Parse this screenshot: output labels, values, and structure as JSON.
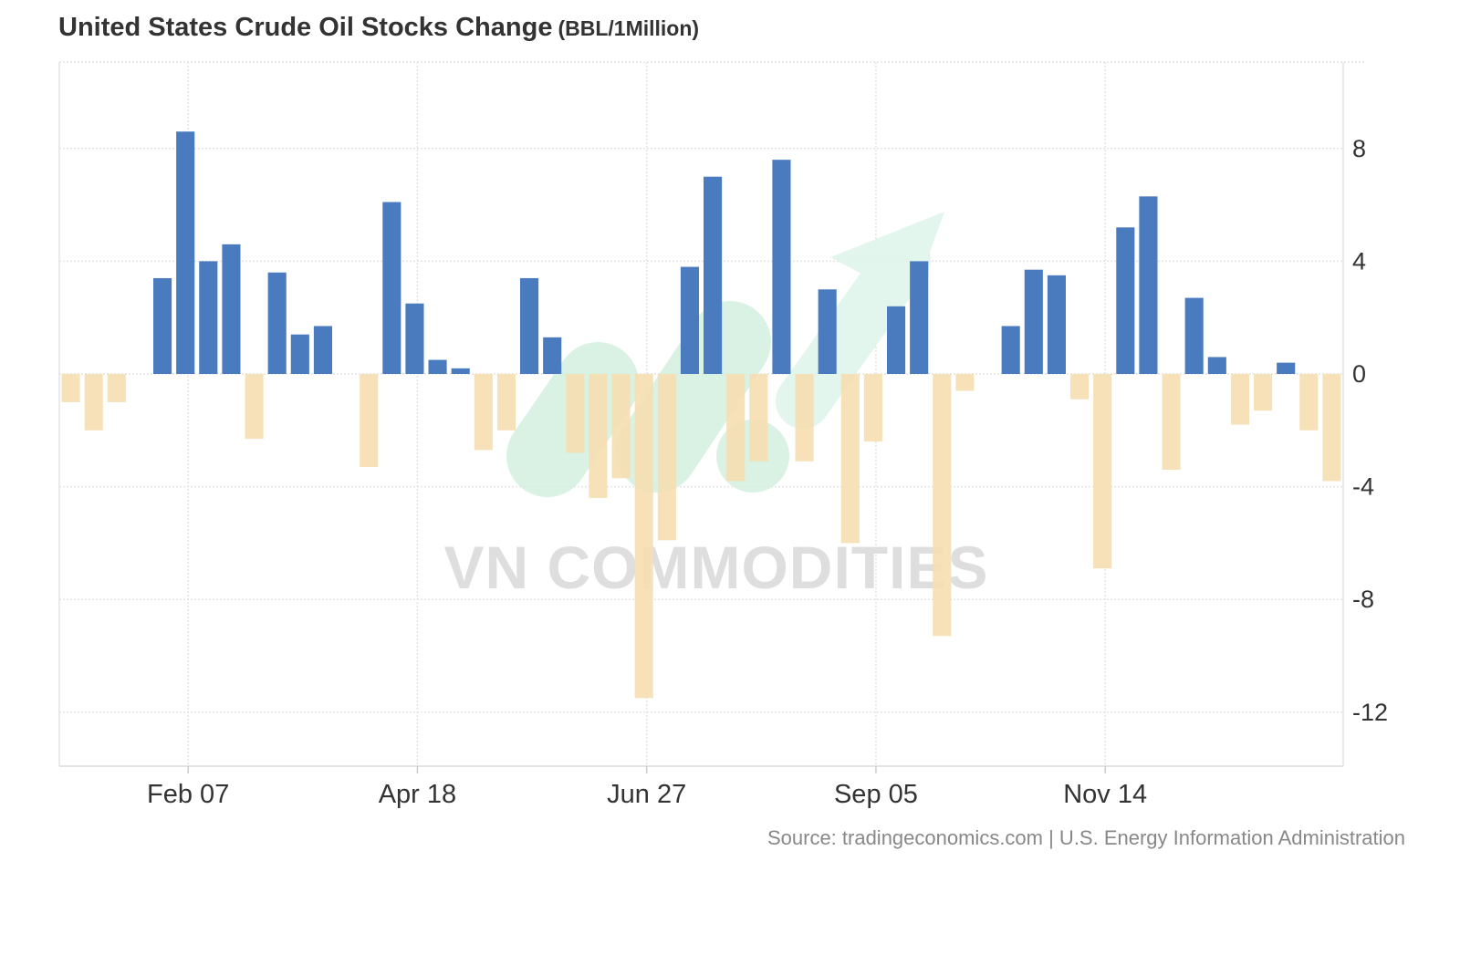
{
  "title": "United States Crude Oil Stocks Change",
  "unit": "(BBL/1Million)",
  "source": "Source: tradingeconomics.com | U.S. Energy Information Administration",
  "watermark": "VN COMMODITIES",
  "colors": {
    "positive": "#4a7bbf",
    "negative": "#f5deb0",
    "grid": "#e4e4e4",
    "axis_text": "#333333",
    "watermark_green": "#d3f0e0",
    "watermark_text": "#d9d9d9"
  },
  "chart_data": {
    "type": "bar",
    "ylim": [
      -14,
      11
    ],
    "yticks": [
      8,
      4,
      0,
      -4,
      -8,
      -12
    ],
    "ytick_labels": [
      "8",
      "4",
      "0",
      "-4",
      "-8",
      "-12"
    ],
    "xticks": [
      {
        "label": "Feb 07",
        "index": 5.5
      },
      {
        "label": "Apr 18",
        "index": 15.5
      },
      {
        "label": "Jun 27",
        "index": 25.5
      },
      {
        "label": "Sep 05",
        "index": 35.5
      },
      {
        "label": "Nov 14",
        "index": 45.5
      }
    ],
    "grid": true,
    "values": [
      -1,
      -2,
      -1,
      0,
      3.4,
      8.6,
      4,
      4.6,
      -2.3,
      3.6,
      1.4,
      1.7,
      0,
      -3.3,
      6.1,
      2.5,
      0.5,
      0.2,
      -2.7,
      -2,
      3.4,
      1.3,
      -2.8,
      -4.4,
      -3.7,
      -11.5,
      -5.9,
      3.8,
      7,
      -3.8,
      -3.1,
      7.6,
      -3.1,
      3,
      -6,
      -2.4,
      2.4,
      4,
      -9.3,
      -0.6,
      0,
      1.7,
      3.7,
      3.5,
      -0.9,
      -6.9,
      5.2,
      6.3,
      -3.4,
      2.7,
      0.6,
      -1.8,
      -1.3,
      0.4,
      -2,
      -3.8
    ]
  }
}
